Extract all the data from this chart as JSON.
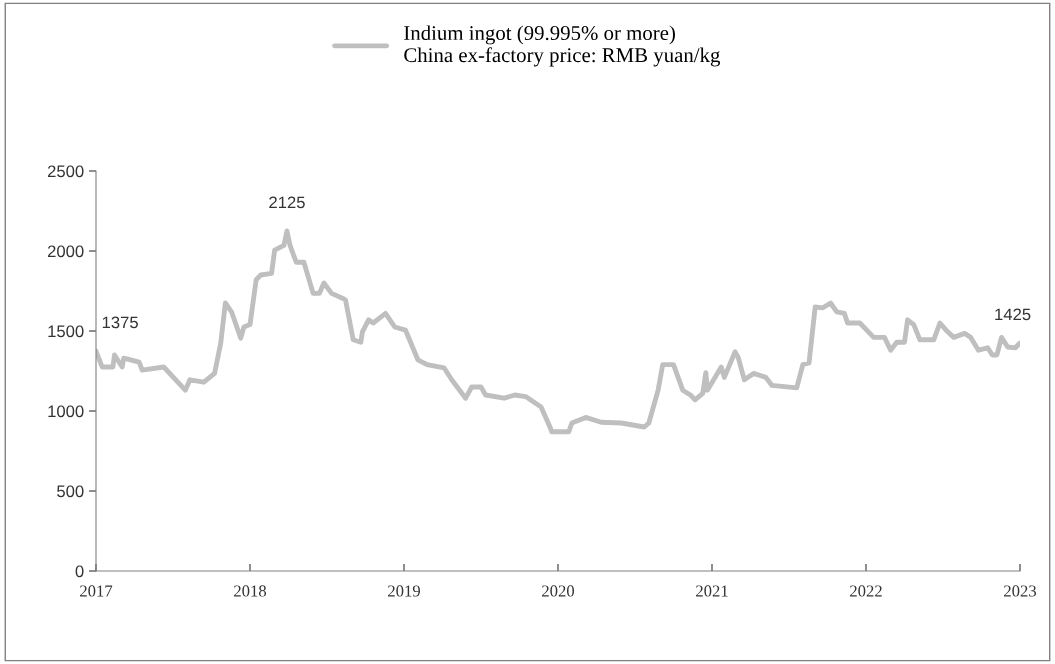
{
  "chart_data": {
    "type": "line",
    "x": [
      2017.0,
      2017.04,
      2017.11,
      2017.12,
      2017.17,
      2017.18,
      2017.28,
      2017.3,
      2017.44,
      2017.58,
      2017.61,
      2017.7,
      2017.77,
      2017.81,
      2017.84,
      2017.88,
      2017.94,
      2017.96,
      2018.0,
      2018.04,
      2018.07,
      2018.14,
      2018.16,
      2018.22,
      2018.24,
      2018.26,
      2018.3,
      2018.35,
      2018.41,
      2018.45,
      2018.48,
      2018.53,
      2018.6,
      2018.62,
      2018.67,
      2018.72,
      2018.73,
      2018.77,
      2018.8,
      2018.88,
      2018.94,
      2019.01,
      2019.09,
      2019.15,
      2019.26,
      2019.31,
      2019.4,
      2019.44,
      2019.5,
      2019.53,
      2019.65,
      2019.72,
      2019.79,
      2019.89,
      2019.95,
      2019.96,
      2020.07,
      2020.09,
      2020.18,
      2020.28,
      2020.41,
      2020.56,
      2020.59,
      2020.65,
      2020.68,
      2020.75,
      2020.81,
      2020.86,
      2020.89,
      2020.94,
      2020.96,
      2020.97,
      2021.06,
      2021.08,
      2021.15,
      2021.17,
      2021.21,
      2021.27,
      2021.35,
      2021.39,
      2021.55,
      2021.59,
      2021.63,
      2021.67,
      2021.72,
      2021.77,
      2021.81,
      2021.86,
      2021.88,
      2021.96,
      2022.05,
      2022.12,
      2022.16,
      2022.2,
      2022.25,
      2022.27,
      2022.31,
      2022.35,
      2022.44,
      2022.48,
      2022.52,
      2022.57,
      2022.64,
      2022.68,
      2022.73,
      2022.79,
      2022.82,
      2022.85,
      2022.88,
      2022.92,
      2022.97,
      2023.0
    ],
    "series": [
      {
        "name": "Indium ingot (99.995% or more)\nChina ex-factory price: RMB yuan/kg",
        "color": "#bfbfbf",
        "values": [
          1375,
          1275,
          1275,
          1350,
          1275,
          1330,
          1305,
          1255,
          1275,
          1130,
          1195,
          1180,
          1235,
          1425,
          1675,
          1620,
          1455,
          1525,
          1540,
          1820,
          1850,
          1860,
          2005,
          2035,
          2125,
          2035,
          1930,
          1930,
          1735,
          1735,
          1800,
          1735,
          1705,
          1695,
          1445,
          1430,
          1495,
          1570,
          1550,
          1610,
          1525,
          1505,
          1320,
          1290,
          1270,
          1195,
          1080,
          1150,
          1150,
          1100,
          1080,
          1100,
          1090,
          1025,
          895,
          870,
          870,
          925,
          960,
          930,
          925,
          900,
          925,
          1130,
          1290,
          1290,
          1130,
          1100,
          1070,
          1110,
          1240,
          1130,
          1275,
          1210,
          1370,
          1335,
          1195,
          1235,
          1210,
          1160,
          1145,
          1290,
          1300,
          1650,
          1645,
          1675,
          1620,
          1610,
          1550,
          1550,
          1460,
          1460,
          1380,
          1430,
          1430,
          1570,
          1540,
          1445,
          1445,
          1550,
          1505,
          1460,
          1485,
          1460,
          1380,
          1395,
          1350,
          1350,
          1460,
          1400,
          1395,
          1425
        ]
      }
    ],
    "xlim": [
      2017,
      2023
    ],
    "xticks": [
      2017,
      2018,
      2019,
      2020,
      2021,
      2022,
      2023
    ],
    "ylim": [
      0,
      2500
    ],
    "yticks": [
      0,
      500,
      1000,
      1500,
      2000,
      2500
    ],
    "grid": false,
    "legend": "top",
    "marker": "none",
    "line_style": "solid",
    "annotations": [
      {
        "text": "1375",
        "x": 2017.0,
        "y": 1375
      },
      {
        "text": "2125",
        "x": 2018.24,
        "y": 2125
      },
      {
        "text": "1425",
        "x": 2023.0,
        "y": 1425
      }
    ]
  }
}
